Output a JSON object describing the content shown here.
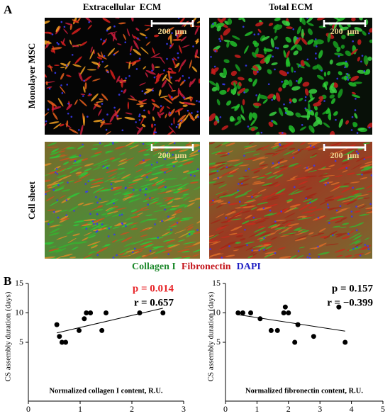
{
  "figure": {
    "panel_a_label": "A",
    "columns": [
      "Extracellular  ECM",
      "Total ECM"
    ],
    "rows": [
      "Monolayer MSC",
      "Cell sheet"
    ],
    "scale_bars": [
      "200  μm",
      "200  μm",
      "200  μm",
      "200  μm"
    ],
    "stain_legend": [
      {
        "name": "Collagen I",
        "color": "#1f8a2e"
      },
      {
        "name": "Fibronectin",
        "color": "#c4161c"
      },
      {
        "name": "DAPI",
        "color": "#1f1fc4"
      }
    ],
    "panel_b_label": "B"
  },
  "chart_data": [
    {
      "type": "scatter",
      "x_label": "Normalized collagen I content, R.U.",
      "y_label": "CS assembly duration (days)",
      "annotations": [
        {
          "text": "p = 0.014",
          "color": "#e8262a"
        },
        {
          "text": "r = 0.657",
          "color": "#000000"
        }
      ],
      "x": [
        0.55,
        0.6,
        0.65,
        0.72,
        0.98,
        1.08,
        1.12,
        1.2,
        1.42,
        1.5,
        2.15,
        2.6
      ],
      "values": [
        8,
        6,
        5,
        5,
        7,
        9,
        10,
        10,
        7,
        10,
        10,
        10
      ],
      "color": "#000000",
      "trendline": {
        "x": [
          0.55,
          2.6
        ],
        "y": [
          6.6,
          10.8
        ]
      },
      "xlim": [
        0,
        3
      ],
      "xticks": [
        0,
        1,
        2,
        3
      ],
      "ylim": [
        -5,
        15
      ],
      "yticks": [
        5,
        10,
        15
      ]
    },
    {
      "type": "scatter",
      "x_label": "Normalized fibronectin content, R.U.",
      "y_label": "CS assembly duration (days)",
      "annotations": [
        {
          "text": "p = 0.157",
          "color": "#000000"
        },
        {
          "text": "r = −0.399",
          "color": "#000000"
        }
      ],
      "x": [
        0.4,
        0.55,
        0.8,
        1.1,
        1.45,
        1.65,
        1.85,
        1.9,
        2.0,
        2.2,
        2.3,
        2.8,
        3.6,
        3.8
      ],
      "values": [
        10,
        10,
        10,
        9,
        7,
        7,
        10,
        11,
        10,
        5,
        8,
        6,
        11,
        5
      ],
      "color": "#000000",
      "trendline": {
        "x": [
          0.4,
          3.8
        ],
        "y": [
          9.7,
          6.9
        ]
      },
      "xlim": [
        0,
        5
      ],
      "xticks": [
        0,
        1,
        2,
        3,
        4,
        5
      ],
      "ylim": [
        -5,
        15
      ],
      "yticks": [
        5,
        10,
        15
      ]
    }
  ]
}
